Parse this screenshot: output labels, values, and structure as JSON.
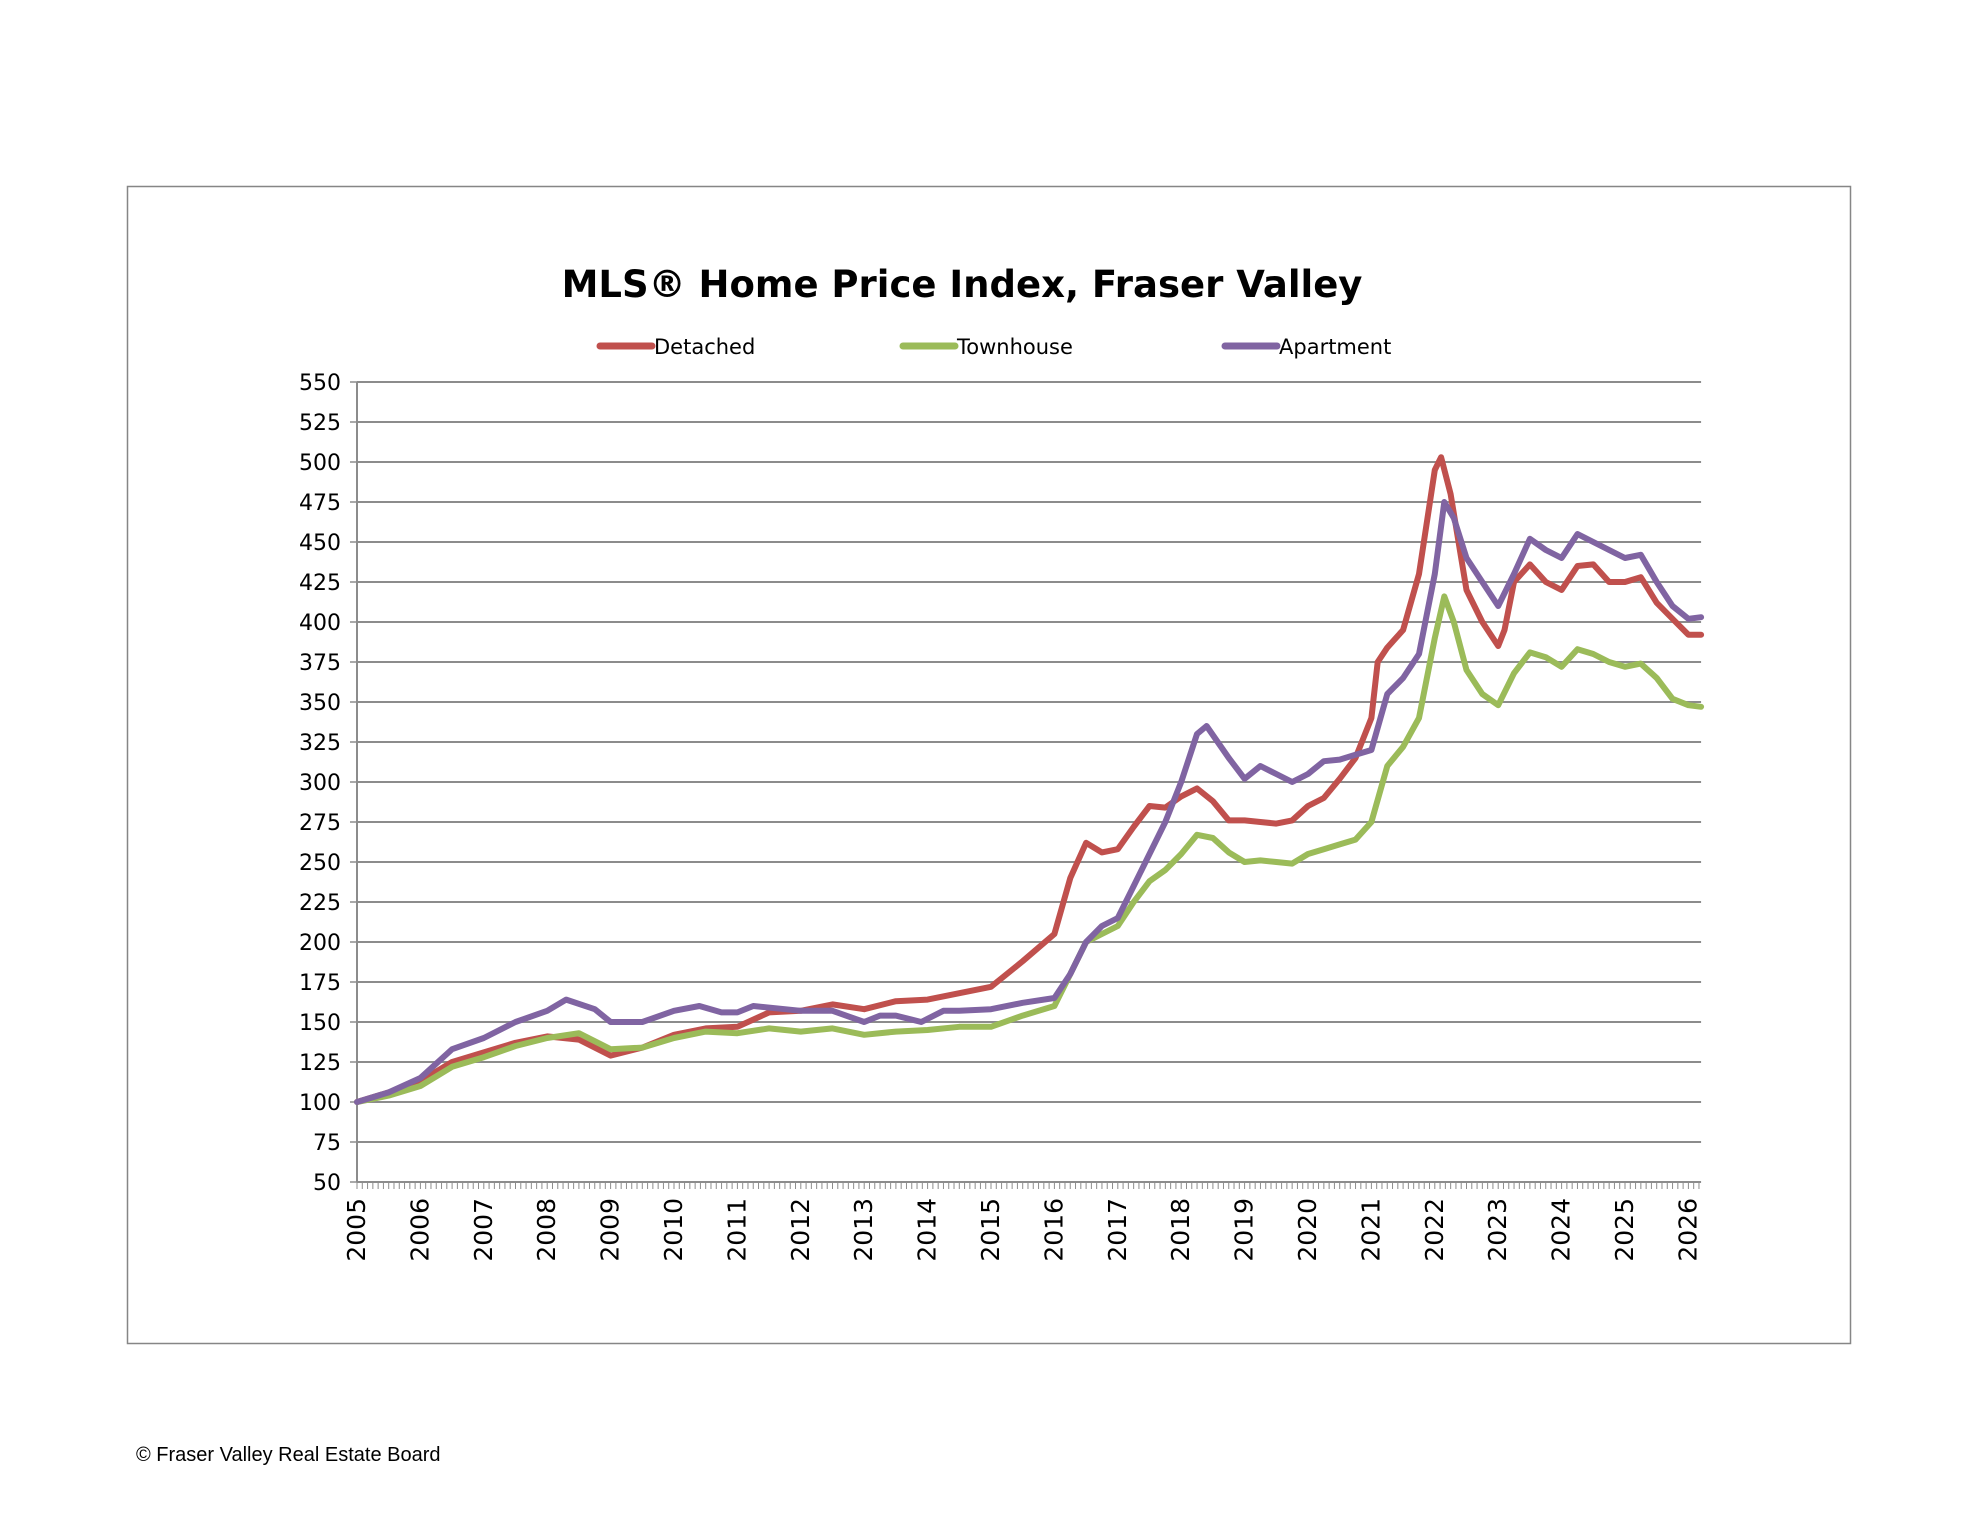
{
  "footer": "© Fraser Valley Real Estate Board",
  "chart_data": {
    "type": "line",
    "title": "MLS® Home Price Index, Fraser Valley",
    "xlabel": "",
    "ylabel": "",
    "ylim": [
      50,
      550
    ],
    "ytick_step": 25,
    "xlim": [
      2005,
      2026.2
    ],
    "x_tick_labels": [
      "2005",
      "2006",
      "2007",
      "2008",
      "2009",
      "2010",
      "2011",
      "2012",
      "2013",
      "2014",
      "2015",
      "2016",
      "2017",
      "2018",
      "2019",
      "2020",
      "2021",
      "2022",
      "2023",
      "2024",
      "2025",
      "2026"
    ],
    "grid": "horizontal",
    "legend": "top",
    "series": [
      {
        "name": "Detached",
        "color": "#c0504d",
        "x": [
          2005,
          2005.5,
          2006,
          2006.5,
          2007,
          2007.5,
          2008,
          2008.5,
          2009,
          2009.5,
          2010,
          2010.5,
          2011,
          2011.5,
          2012,
          2012.5,
          2013,
          2013.5,
          2014,
          2014.5,
          2015,
          2015.5,
          2016,
          2016.25,
          2016.5,
          2016.75,
          2017,
          2017.25,
          2017.5,
          2017.75,
          2018,
          2018.25,
          2018.5,
          2018.75,
          2019,
          2019.25,
          2019.5,
          2019.75,
          2020,
          2020.25,
          2020.5,
          2020.75,
          2021,
          2021.1,
          2021.25,
          2021.5,
          2021.75,
          2022,
          2022.1,
          2022.25,
          2022.5,
          2022.75,
          2023,
          2023.1,
          2023.25,
          2023.5,
          2023.75,
          2024,
          2024.25,
          2024.5,
          2024.75,
          2025,
          2025.25,
          2025.5,
          2025.75,
          2026,
          2026.2
        ],
        "y": [
          100,
          106,
          113,
          125,
          131,
          137,
          141,
          139,
          129,
          134,
          142,
          146,
          147,
          156,
          157,
          161,
          158,
          163,
          164,
          168,
          172,
          188,
          205,
          240,
          262,
          256,
          258,
          272,
          285,
          284,
          291,
          296,
          288,
          276,
          276,
          275,
          274,
          276,
          285,
          290,
          302,
          315,
          340,
          375,
          384,
          395,
          430,
          495,
          503,
          480,
          420,
          400,
          385,
          395,
          425,
          436,
          425,
          420,
          435,
          436,
          425,
          425,
          428,
          412,
          402,
          392,
          392
        ]
      },
      {
        "name": "Townhouse",
        "color": "#9bbb59",
        "x": [
          2005,
          2005.5,
          2006,
          2006.5,
          2007,
          2007.5,
          2008,
          2008.5,
          2009,
          2009.5,
          2010,
          2010.5,
          2011,
          2011.5,
          2012,
          2012.5,
          2013,
          2013.5,
          2014,
          2014.5,
          2015,
          2015.5,
          2016,
          2016.25,
          2016.5,
          2016.75,
          2017,
          2017.25,
          2017.5,
          2017.75,
          2018,
          2018.25,
          2018.5,
          2018.75,
          2019,
          2019.25,
          2019.5,
          2019.75,
          2020,
          2020.25,
          2020.5,
          2020.75,
          2021,
          2021.25,
          2021.5,
          2021.75,
          2022,
          2022.15,
          2022.3,
          2022.5,
          2022.75,
          2023,
          2023.25,
          2023.5,
          2023.75,
          2024,
          2024.25,
          2024.5,
          2024.75,
          2025,
          2025.25,
          2025.5,
          2025.75,
          2026,
          2026.2
        ],
        "y": [
          100,
          104,
          110,
          122,
          128,
          135,
          140,
          143,
          133,
          134,
          140,
          144,
          143,
          146,
          144,
          146,
          142,
          144,
          145,
          147,
          147,
          154,
          160,
          180,
          200,
          205,
          210,
          225,
          238,
          245,
          255,
          267,
          265,
          256,
          250,
          251,
          250,
          249,
          255,
          258,
          261,
          264,
          275,
          310,
          322,
          340,
          390,
          416,
          400,
          370,
          355,
          348,
          368,
          381,
          378,
          372,
          383,
          380,
          375,
          372,
          374,
          365,
          352,
          348,
          347
        ]
      },
      {
        "name": "Apartment",
        "color": "#8064a2",
        "x": [
          2005,
          2005.5,
          2006,
          2006.5,
          2007,
          2007.5,
          2008,
          2008.3,
          2008.75,
          2009,
          2009.5,
          2010,
          2010.4,
          2010.75,
          2011,
          2011.25,
          2011.75,
          2012,
          2012.5,
          2013,
          2013.25,
          2013.5,
          2013.9,
          2014.25,
          2014.5,
          2015,
          2015.5,
          2016,
          2016.25,
          2016.5,
          2016.75,
          2017,
          2017.25,
          2017.5,
          2017.75,
          2018,
          2018.25,
          2018.4,
          2018.75,
          2019,
          2019.25,
          2019.5,
          2019.75,
          2020,
          2020.25,
          2020.5,
          2020.75,
          2021,
          2021.25,
          2021.5,
          2021.75,
          2022,
          2022.15,
          2022.3,
          2022.5,
          2022.75,
          2023,
          2023.25,
          2023.5,
          2023.75,
          2024,
          2024.25,
          2024.5,
          2024.75,
          2025,
          2025.25,
          2025.5,
          2025.75,
          2026,
          2026.2
        ],
        "y": [
          100,
          106,
          115,
          133,
          140,
          150,
          157,
          164,
          158,
          150,
          150,
          157,
          160,
          156,
          156,
          160,
          158,
          157,
          157,
          150,
          154,
          154,
          150,
          157,
          157,
          158,
          162,
          165,
          180,
          200,
          210,
          215,
          235,
          255,
          275,
          300,
          330,
          335,
          315,
          302,
          310,
          305,
          300,
          305,
          313,
          314,
          317,
          320,
          355,
          365,
          380,
          430,
          475,
          465,
          440,
          425,
          410,
          430,
          452,
          445,
          440,
          455,
          450,
          445,
          440,
          442,
          425,
          410,
          402,
          403
        ]
      }
    ]
  }
}
